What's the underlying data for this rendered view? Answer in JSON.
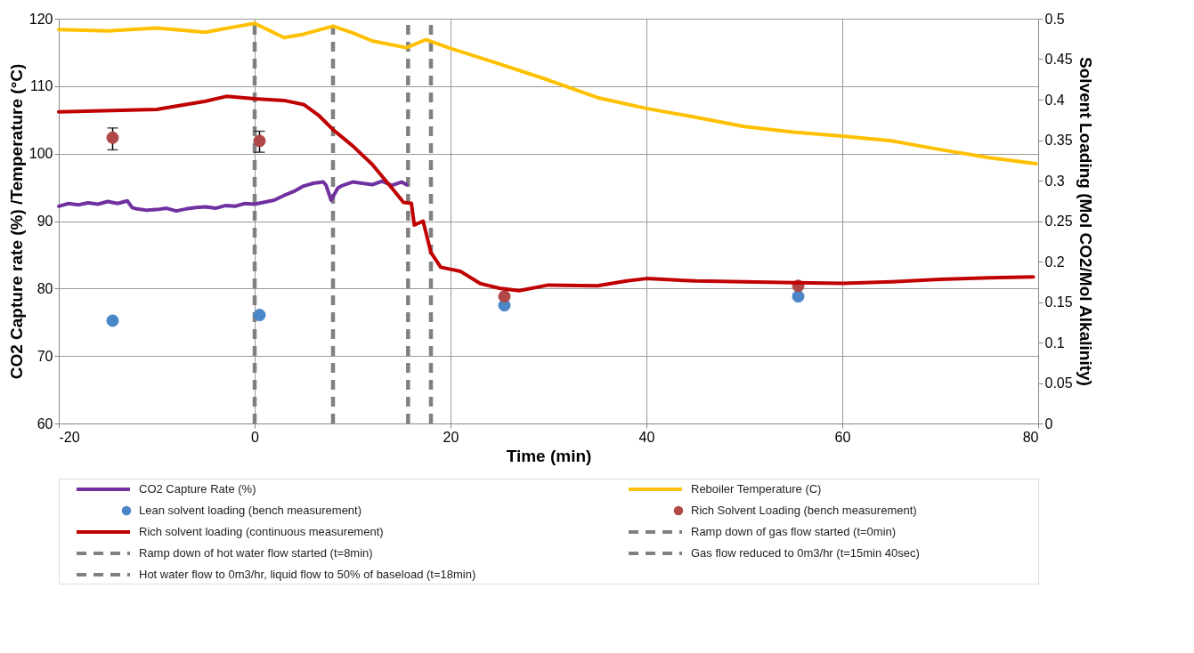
{
  "chart_data": {
    "type": "line",
    "xlabel": "Time (min)",
    "ylabel": "CO2 Capture rate (%) /Temperature (°C)",
    "y2label": "Solvent Loading (Mol CO2/Mol Alkalinity)",
    "xlim": [
      -20,
      80
    ],
    "xticks": [
      -20,
      0,
      20,
      40,
      60,
      80
    ],
    "ylim": [
      60,
      120
    ],
    "yticks": [
      60,
      70,
      80,
      90,
      100,
      110,
      120
    ],
    "y2lim": [
      0,
      0.5
    ],
    "y2ticks": [
      0,
      0.05,
      0.1,
      0.15,
      0.2,
      0.25,
      0.3,
      0.35,
      0.4,
      0.45,
      0.5
    ],
    "grid": true,
    "legend": "bottom",
    "series": [
      {
        "name": "CO2 Capture Rate (%)",
        "color": "#7030a0",
        "line_style": "solid",
        "x": [
          -20,
          -19,
          -18,
          -17,
          -16,
          -15,
          -14,
          -13,
          -12.5,
          -12,
          -11,
          -10,
          -9,
          -8,
          -7,
          -6,
          -5,
          -4,
          -3,
          -2,
          -1,
          0,
          1,
          2,
          3,
          4,
          5,
          6,
          7,
          7.3,
          7.8,
          8.5,
          9,
          10,
          11,
          12,
          13,
          14,
          15,
          15.5
        ],
        "values": [
          92.2,
          92.6,
          92.4,
          92.7,
          92.5,
          92.9,
          92.6,
          93.0,
          92.0,
          91.8,
          91.6,
          91.7,
          91.9,
          91.5,
          91.8,
          92.0,
          92.1,
          91.9,
          92.3,
          92.2,
          92.6,
          92.5,
          92.8,
          93.1,
          93.8,
          94.4,
          95.2,
          95.6,
          95.8,
          95.3,
          93.1,
          94.9,
          95.3,
          95.8,
          95.6,
          95.4,
          95.9,
          95.3,
          95.8,
          95.4
        ]
      },
      {
        "name": "Reboiler Temperature (C)",
        "color": "#ffc000",
        "line_style": "solid",
        "x": [
          -20,
          -15,
          -10,
          -5,
          -2,
          0,
          3,
          5,
          8,
          10,
          12,
          15.5,
          17.5,
          20,
          25,
          30,
          35,
          40,
          45,
          50,
          55,
          60,
          65,
          70,
          75,
          79.8
        ],
        "values": [
          118.4,
          118.2,
          118.6,
          118.0,
          118.8,
          119.3,
          117.2,
          117.7,
          118.9,
          117.9,
          116.7,
          115.7,
          116.9,
          115.6,
          113.3,
          110.9,
          108.3,
          106.7,
          105.4,
          104.0,
          103.2,
          102.6,
          101.9,
          100.6,
          99.4,
          98.5
        ]
      },
      {
        "name": "Lean solvent loading (bench measurement)",
        "color": "#4a86c8",
        "type": "scatter",
        "marker": "circle",
        "axis": "y2",
        "x": [
          -14.5,
          0.5,
          25.5,
          55.5
        ],
        "values": [
          0.127,
          0.134,
          0.146,
          0.157
        ]
      },
      {
        "name": "Rich Solvent Loading (bench measurement)",
        "color": "#b04848",
        "type": "scatter",
        "marker": "circle",
        "axis": "y2",
        "x": [
          -14.5,
          0.5,
          25.5,
          55.5
        ],
        "values": [
          0.353,
          0.349,
          0.157,
          0.17
        ],
        "errors": [
          [
            0.338,
            0.365
          ],
          [
            0.335,
            0.361
          ],
          null,
          null
        ]
      },
      {
        "name": "Rich solvent loading (continuous measurement)",
        "color": "#c00000",
        "line_style": "solid",
        "axis": "y2",
        "x": [
          -20,
          -10,
          -5,
          -2.9,
          0,
          3,
          5,
          6.5,
          8,
          10,
          12,
          14,
          15.2,
          16,
          16.3,
          17.2,
          18,
          19,
          21,
          23,
          25,
          27,
          30,
          35,
          38,
          40,
          45,
          50,
          55,
          60,
          65,
          70,
          75,
          79.5
        ],
        "values": [
          0.385,
          0.388,
          0.398,
          0.404,
          0.401,
          0.399,
          0.394,
          0.381,
          0.363,
          0.343,
          0.32,
          0.291,
          0.273,
          0.272,
          0.245,
          0.25,
          0.211,
          0.193,
          0.188,
          0.173,
          0.167,
          0.164,
          0.171,
          0.17,
          0.176,
          0.179,
          0.176,
          0.175,
          0.174,
          0.173,
          0.175,
          0.178,
          0.18,
          0.181
        ]
      },
      {
        "name": "Ramp down of gas flow started (t=0min)",
        "color": "#808080",
        "line_style": "dashed",
        "x": [
          0,
          0
        ],
        "values": [
          60,
          120
        ]
      },
      {
        "name": "Ramp down of hot water flow started (t=8min)",
        "color": "#808080",
        "line_style": "dashed",
        "x": [
          8,
          8
        ],
        "values": [
          60,
          120
        ]
      },
      {
        "name": "Gas flow reduced to 0m3/hr (t=15min 40sec)",
        "color": "#808080",
        "line_style": "dashed",
        "x": [
          15.667,
          15.667
        ],
        "values": [
          60,
          120
        ]
      },
      {
        "name": "Hot water flow to 0m3/hr, liquid flow to 50% of baseload (t=18min)",
        "color": "#808080",
        "line_style": "dashed",
        "x": [
          18,
          18
        ],
        "values": [
          60,
          120
        ]
      }
    ]
  }
}
